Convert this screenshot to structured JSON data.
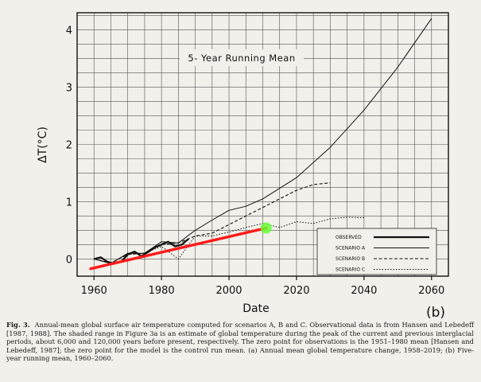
{
  "chart_data": {
    "type": "line",
    "title": "5- Year Running Mean",
    "xlabel": "Date",
    "ylabel": "ΔT(°C)",
    "panel_label": "(b)",
    "xlim": [
      1955,
      2065
    ],
    "ylim": [
      -0.3,
      4.3
    ],
    "xticks": [
      1960,
      1980,
      2000,
      2020,
      2040,
      2060
    ],
    "yticks": [
      0,
      1,
      2,
      3,
      4
    ],
    "legend_position": "bottom-right",
    "series": [
      {
        "name": "OBSERVED",
        "style": "thick-solid",
        "x": [
          1960,
          1962,
          1964,
          1966,
          1968,
          1970,
          1972,
          1974,
          1976,
          1978,
          1980,
          1982,
          1984,
          1986,
          1988
        ],
        "y": [
          0.0,
          0.03,
          -0.05,
          -0.08,
          -0.05,
          0.08,
          0.13,
          0.05,
          0.12,
          0.2,
          0.25,
          0.3,
          0.22,
          0.25,
          0.35
        ]
      },
      {
        "name": "SCENARIO A",
        "style": "solid",
        "x": [
          1960,
          1965,
          1970,
          1975,
          1980,
          1985,
          1990,
          1995,
          2000,
          2005,
          2010,
          2020,
          2030,
          2040,
          2050,
          2060
        ],
        "y": [
          0.0,
          -0.08,
          0.1,
          0.1,
          0.3,
          0.28,
          0.5,
          0.68,
          0.85,
          0.92,
          1.05,
          1.42,
          1.95,
          2.6,
          3.35,
          4.2
        ]
      },
      {
        "name": "SCENARIO B",
        "style": "dashed",
        "x": [
          1960,
          1965,
          1970,
          1975,
          1980,
          1985,
          1990,
          1995,
          2000,
          2005,
          2010,
          2015,
          2020,
          2025,
          2030
        ],
        "y": [
          0.0,
          -0.07,
          0.08,
          0.1,
          0.25,
          0.28,
          0.4,
          0.45,
          0.6,
          0.75,
          0.9,
          1.05,
          1.2,
          1.3,
          1.33
        ]
      },
      {
        "name": "SCENARIO C",
        "style": "dotted",
        "x": [
          1960,
          1965,
          1970,
          1975,
          1980,
          1985,
          1990,
          1995,
          2000,
          2005,
          2010,
          2015,
          2020,
          2025,
          2030,
          2035,
          2040
        ],
        "y": [
          0.0,
          -0.07,
          0.08,
          0.1,
          0.22,
          0.0,
          0.4,
          0.4,
          0.47,
          0.55,
          0.62,
          0.55,
          0.65,
          0.62,
          0.7,
          0.73,
          0.72
        ]
      }
    ],
    "annotations": {
      "red_trend_line": {
        "x": [
          1959,
          2011
        ],
        "y": [
          -0.17,
          0.54
        ],
        "color": "#ff1a1a"
      },
      "green_marker": {
        "x": 2011,
        "y": 0.54,
        "color": "#66ff33"
      }
    }
  },
  "caption": {
    "fig_label": "Fig. 3.",
    "text": "Annual-mean global surface air temperature computed for scenarios A, B and C. Observational data is from Hansen and Lebedeff [1987, 1988]. The shaded range in Figure 3a is an estimate of global temperature during the peak of the current and previous interglacial periods, about 6,000 and 120,000 years before present, respectively. The zero point for observations is the 1951–1980 mean [Hansen and Lebedeff, 1987]; the zero point for the model is the control run mean. (a) Annual mean global temperature change, 1958–2019; (b) Five-year running mean, 1960–2060."
  },
  "colors": {
    "background": "#f1f0ea",
    "ink": "#111111",
    "grid": "#555555"
  }
}
